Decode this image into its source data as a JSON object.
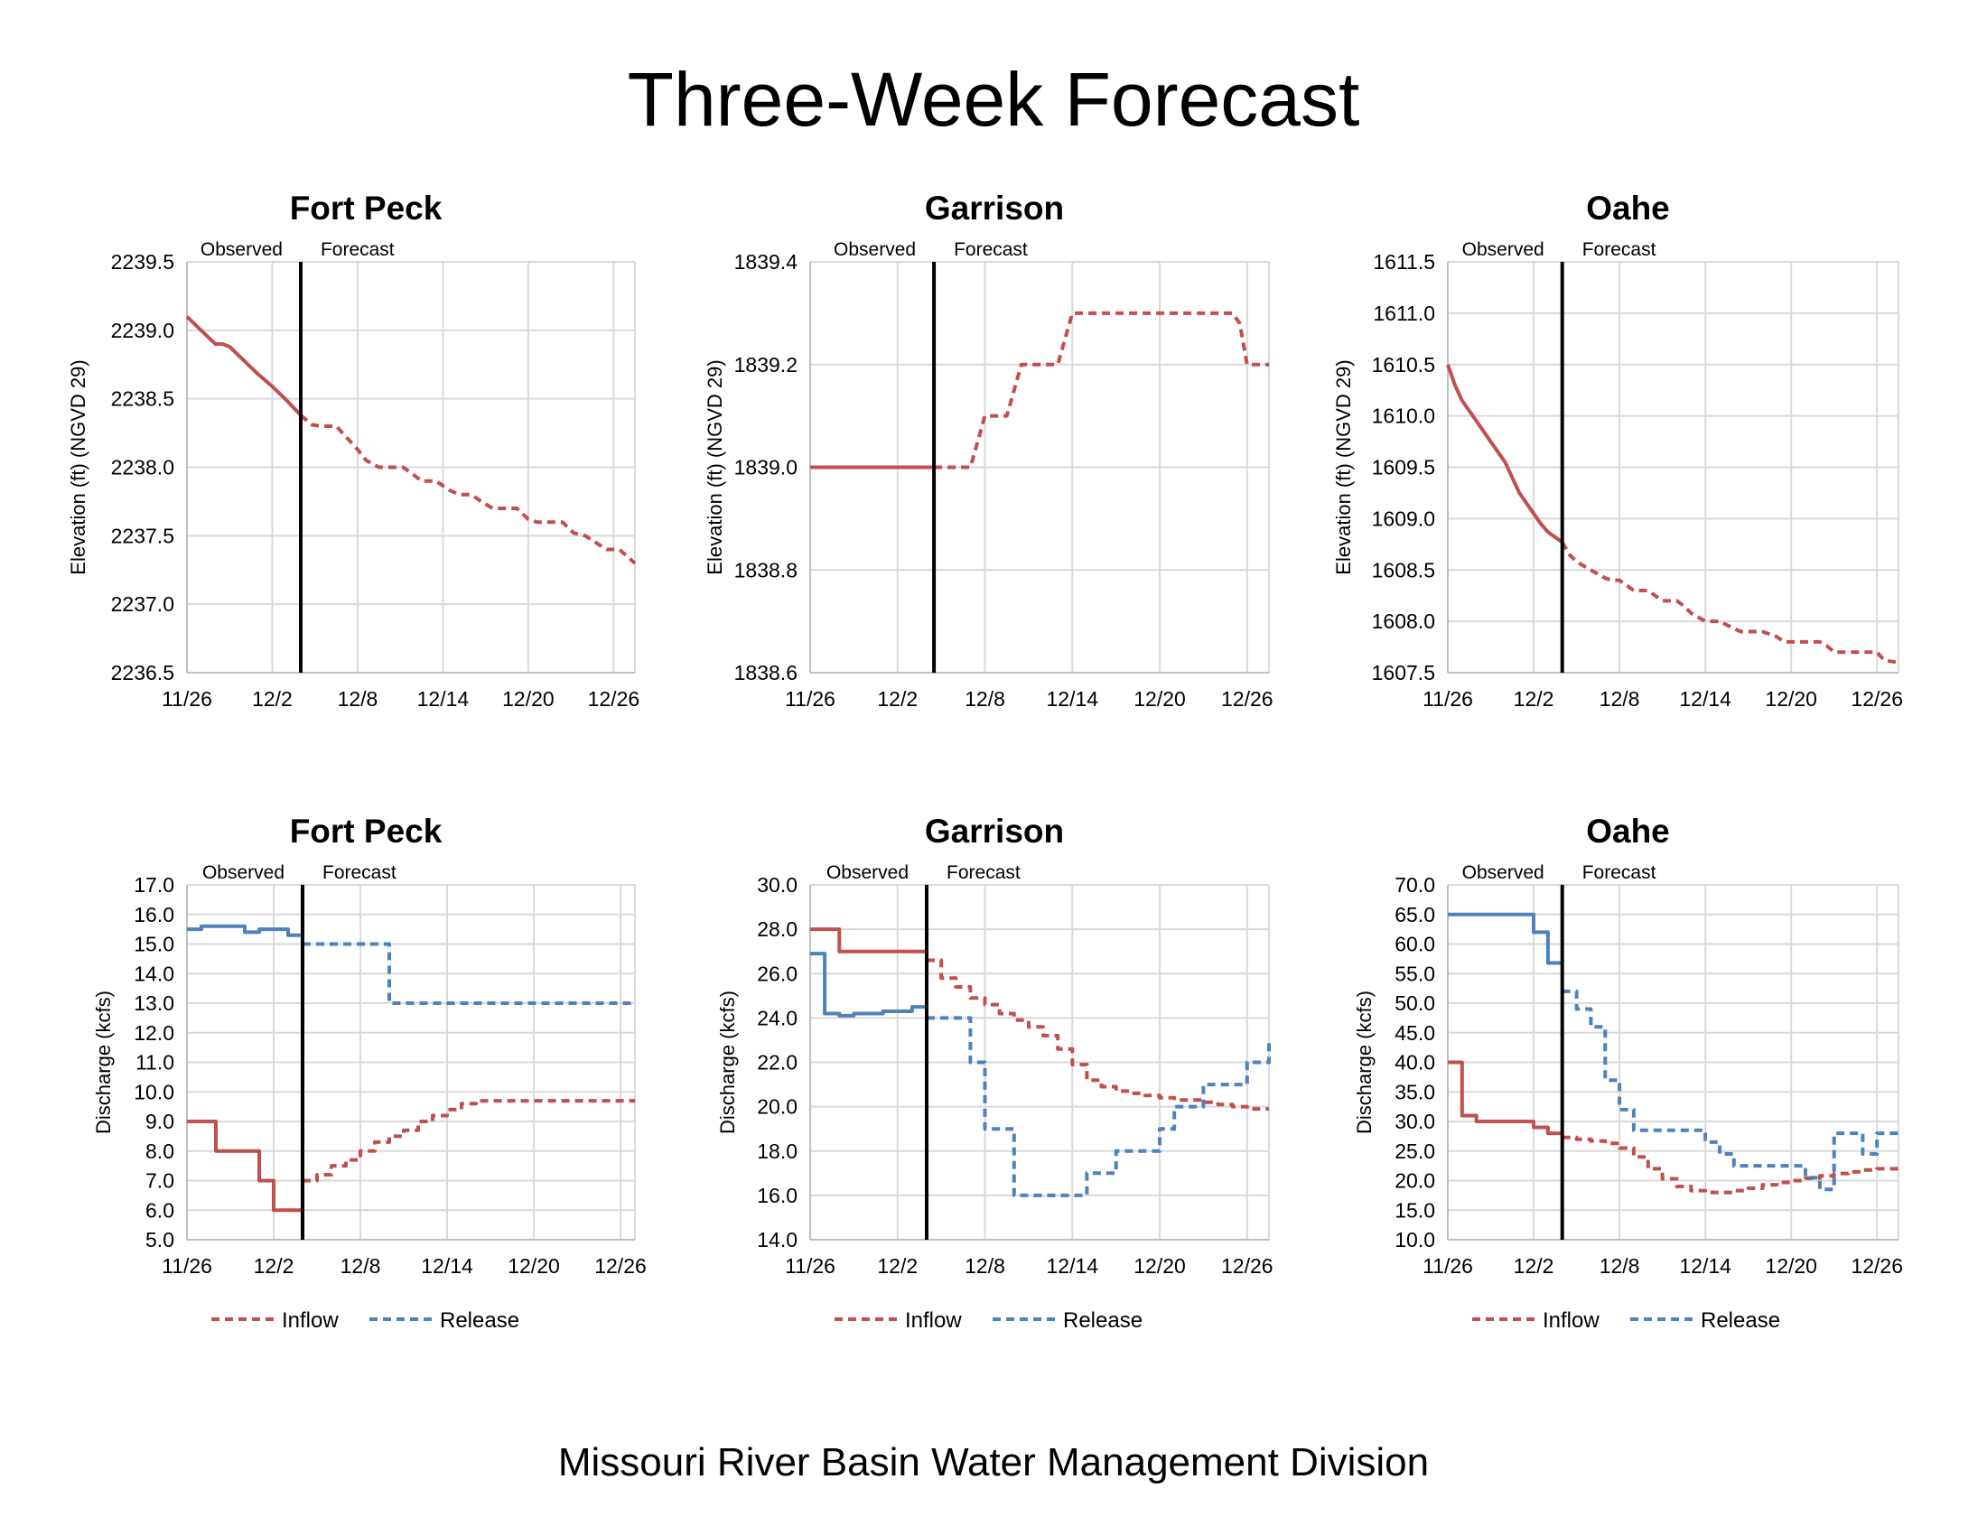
{
  "title": "Three-Week Forecast",
  "footer": "Missouri River Basin Water Management Division",
  "legend": {
    "inflow": "Inflow",
    "release": "Release"
  },
  "colors": {
    "inflow": "#c0504d",
    "release": "#4f81bd",
    "grid": "#d9d9d9",
    "divider": "#000000"
  },
  "chart_data": [
    {
      "type": "line",
      "title": "Fort Peck",
      "ylabel": "Elevation (ft) (NGVD 29)",
      "ylim": [
        2236.5,
        2239.5
      ],
      "yticks": [
        "2236.5",
        "2237.0",
        "2237.5",
        "2238.0",
        "2238.5",
        "2239.0",
        "2239.5"
      ],
      "xlim": [
        0,
        31.5
      ],
      "xticks": [
        0,
        6,
        12,
        18,
        24,
        30
      ],
      "xticklabels": [
        "11/26",
        "12/2",
        "12/8",
        "12/14",
        "12/20",
        "12/26"
      ],
      "observed_label": "Observed",
      "forecast_label": "Forecast",
      "divider_x": 8,
      "series": [
        {
          "name": "Observed",
          "color_key": "inflow",
          "dash": false,
          "step": false,
          "x": [
            0,
            1,
            1.5,
            2,
            2.5,
            3,
            4,
            5,
            6,
            7,
            8
          ],
          "y": [
            2239.1,
            2239.0,
            2238.95,
            2238.9,
            2238.9,
            2238.88,
            2238.78,
            2238.68,
            2238.59,
            2238.49,
            2238.38
          ]
        },
        {
          "name": "Forecast",
          "color_key": "inflow",
          "dash": true,
          "step": false,
          "x": [
            8,
            8.8,
            9.5,
            10.5,
            11.2,
            12,
            12.6,
            13.5,
            14.5,
            15.2,
            16,
            16.5,
            17.5,
            18.5,
            19.2,
            20,
            20.7,
            21.5,
            22.4,
            23.2,
            24,
            24.6,
            25.5,
            26.4,
            27.2,
            28,
            28.6,
            29.5,
            30.4,
            31.5
          ],
          "y": [
            2238.38,
            2238.31,
            2238.3,
            2238.3,
            2238.22,
            2238.13,
            2238.05,
            2238.0,
            2238.0,
            2238.0,
            2237.94,
            2237.9,
            2237.9,
            2237.83,
            2237.8,
            2237.8,
            2237.75,
            2237.7,
            2237.7,
            2237.7,
            2237.62,
            2237.6,
            2237.6,
            2237.6,
            2237.52,
            2237.5,
            2237.46,
            2237.4,
            2237.4,
            2237.3
          ]
        }
      ]
    },
    {
      "type": "line",
      "title": "Garrison",
      "ylabel": "Elevation (ft) (NGVD 29)",
      "ylim": [
        1838.6,
        1839.4
      ],
      "yticks": [
        "1838.6",
        "1838.8",
        "1839.0",
        "1839.2",
        "1839.4"
      ],
      "xlim": [
        0,
        31.5
      ],
      "xticks": [
        0,
        6,
        12,
        18,
        24,
        30
      ],
      "xticklabels": [
        "11/26",
        "12/2",
        "12/8",
        "12/14",
        "12/20",
        "12/26"
      ],
      "observed_label": "Observed",
      "forecast_label": "Forecast",
      "divider_x": 8.5,
      "series": [
        {
          "name": "Observed",
          "color_key": "inflow",
          "dash": false,
          "step": false,
          "x": [
            0,
            8.5
          ],
          "y": [
            1839.0,
            1839.0
          ]
        },
        {
          "name": "Forecast",
          "color_key": "inflow",
          "dash": true,
          "step": false,
          "x": [
            8.5,
            10,
            11,
            11.5,
            12,
            12.5,
            13.5,
            14,
            14.5,
            15,
            15.5,
            16,
            17,
            17.5,
            18,
            28,
            29,
            29.5,
            30,
            31,
            31.5
          ],
          "y": [
            1839.0,
            1839.0,
            1839.0,
            1839.05,
            1839.1,
            1839.1,
            1839.1,
            1839.15,
            1839.2,
            1839.2,
            1839.2,
            1839.2,
            1839.2,
            1839.25,
            1839.3,
            1839.3,
            1839.3,
            1839.28,
            1839.2,
            1839.2,
            1839.2
          ]
        }
      ]
    },
    {
      "type": "line",
      "title": "Oahe",
      "ylabel": "Elevation (ft) (NGVD 29)",
      "ylim": [
        1607.5,
        1611.5
      ],
      "yticks": [
        "1607.5",
        "1608.0",
        "1608.5",
        "1609.0",
        "1609.5",
        "1610.0",
        "1610.5",
        "1611.0",
        "1611.5"
      ],
      "xlim": [
        0,
        31.5
      ],
      "xticks": [
        0,
        6,
        12,
        18,
        24,
        30
      ],
      "xticklabels": [
        "11/26",
        "12/2",
        "12/8",
        "12/14",
        "12/20",
        "12/26"
      ],
      "observed_label": "Observed",
      "forecast_label": "Forecast",
      "divider_x": 8,
      "series": [
        {
          "name": "Observed",
          "color_key": "inflow",
          "dash": false,
          "step": false,
          "x": [
            0,
            0.5,
            1,
            2,
            3,
            4,
            5,
            6,
            6.5,
            7,
            7.5,
            8
          ],
          "y": [
            1610.5,
            1610.3,
            1610.15,
            1609.95,
            1609.75,
            1609.55,
            1609.25,
            1609.05,
            1608.95,
            1608.87,
            1608.82,
            1608.77
          ]
        },
        {
          "name": "Forecast",
          "color_key": "inflow",
          "dash": true,
          "step": false,
          "x": [
            8,
            8.5,
            9,
            10,
            11,
            11.5,
            12,
            12.5,
            13,
            14,
            14.5,
            15,
            16,
            16.5,
            17,
            18,
            18.5,
            19,
            20,
            20.5,
            21,
            22,
            23,
            23.5,
            24,
            25,
            26,
            26.5,
            27,
            28,
            29,
            30,
            30.5,
            31.5
          ],
          "y": [
            1608.77,
            1608.65,
            1608.58,
            1608.5,
            1608.42,
            1608.4,
            1608.4,
            1608.35,
            1608.3,
            1608.3,
            1608.25,
            1608.2,
            1608.2,
            1608.15,
            1608.08,
            1608.0,
            1608.0,
            1608.0,
            1607.93,
            1607.9,
            1607.9,
            1607.9,
            1607.85,
            1607.8,
            1607.8,
            1607.8,
            1607.8,
            1607.76,
            1607.7,
            1607.7,
            1607.7,
            1607.7,
            1607.62,
            1607.6
          ]
        }
      ]
    },
    {
      "type": "line",
      "title": "Fort Peck",
      "ylabel": "Discharge (kcfs)",
      "ylim": [
        5.0,
        17.0
      ],
      "yticks": [
        "5.0",
        "6.0",
        "7.0",
        "8.0",
        "9.0",
        "10.0",
        "11.0",
        "12.0",
        "13.0",
        "14.0",
        "15.0",
        "16.0",
        "17.0"
      ],
      "xlim": [
        0,
        31
      ],
      "xticks": [
        0,
        6,
        12,
        18,
        24,
        30
      ],
      "xticklabels": [
        "11/26",
        "12/2",
        "12/8",
        "12/14",
        "12/20",
        "12/26"
      ],
      "observed_label": "Observed",
      "forecast_label": "Forecast",
      "divider_x": 8,
      "series": [
        {
          "name": "Inflow observed",
          "color_key": "inflow",
          "dash": false,
          "step": true,
          "x": [
            0,
            2,
            5,
            6,
            8
          ],
          "y": [
            9.0,
            8.0,
            7.0,
            6.0,
            6.0
          ]
        },
        {
          "name": "Release observed",
          "color_key": "release",
          "dash": false,
          "step": true,
          "x": [
            0,
            1,
            4,
            5,
            7,
            8
          ],
          "y": [
            15.5,
            15.6,
            15.4,
            15.5,
            15.3,
            15.3
          ]
        },
        {
          "name": "Inflow",
          "color_key": "inflow",
          "dash": true,
          "step": true,
          "x": [
            8,
            9,
            10,
            11,
            12,
            13,
            14,
            15,
            16,
            17,
            18,
            19,
            20,
            31
          ],
          "y": [
            7.0,
            7.2,
            7.5,
            7.7,
            8.0,
            8.3,
            8.5,
            8.7,
            9.0,
            9.2,
            9.4,
            9.6,
            9.7,
            9.7
          ]
        },
        {
          "name": "Release",
          "color_key": "release",
          "dash": true,
          "step": true,
          "x": [
            8,
            14,
            31
          ],
          "y": [
            15.0,
            13.0,
            13.0
          ]
        }
      ]
    },
    {
      "type": "line",
      "title": "Garrison",
      "ylabel": "Discharge (kcfs)",
      "ylim": [
        14.0,
        30.0
      ],
      "yticks": [
        "14.0",
        "16.0",
        "18.0",
        "20.0",
        "22.0",
        "24.0",
        "26.0",
        "28.0",
        "30.0"
      ],
      "xlim": [
        0,
        31.5
      ],
      "xticks": [
        0,
        6,
        12,
        18,
        24,
        30
      ],
      "xticklabels": [
        "11/26",
        "12/2",
        "12/8",
        "12/14",
        "12/20",
        "12/26"
      ],
      "observed_label": "Observed",
      "forecast_label": "Forecast",
      "divider_x": 8,
      "series": [
        {
          "name": "Inflow observed",
          "color_key": "inflow",
          "dash": false,
          "step": true,
          "x": [
            0,
            2,
            8
          ],
          "y": [
            28.0,
            27.0,
            27.0
          ]
        },
        {
          "name": "Release observed",
          "color_key": "release",
          "dash": false,
          "step": true,
          "x": [
            0,
            1,
            2,
            3,
            5,
            7,
            8
          ],
          "y": [
            26.9,
            24.2,
            24.1,
            24.2,
            24.3,
            24.5,
            24.5
          ]
        },
        {
          "name": "Inflow",
          "color_key": "inflow",
          "dash": true,
          "step": true,
          "x": [
            8,
            9,
            10,
            11,
            12,
            13,
            14,
            15,
            16,
            17,
            18,
            19,
            20,
            21,
            22,
            23,
            24,
            25,
            26,
            27,
            28,
            29,
            30,
            31.5
          ],
          "y": [
            26.6,
            25.8,
            25.4,
            24.9,
            24.6,
            24.2,
            23.9,
            23.6,
            23.2,
            22.6,
            21.9,
            21.2,
            20.9,
            20.7,
            20.6,
            20.5,
            20.4,
            20.3,
            20.3,
            20.2,
            20.1,
            20.0,
            19.9,
            19.9
          ]
        },
        {
          "name": "Release",
          "color_key": "release",
          "dash": true,
          "step": true,
          "x": [
            8,
            11,
            12,
            14,
            16,
            18,
            19,
            21,
            22,
            24,
            25,
            27,
            28,
            30,
            31.5,
            31.5
          ],
          "y": [
            24.0,
            22.0,
            19.0,
            16.0,
            16.0,
            16.0,
            17.0,
            18.0,
            18.0,
            19.0,
            20.0,
            21.0,
            21.0,
            22.0,
            23.0,
            23.0
          ]
        }
      ]
    },
    {
      "type": "line",
      "title": "Oahe",
      "ylabel": "Discharge (kcfs)",
      "ylim": [
        10.0,
        70.0
      ],
      "yticks": [
        "10.0",
        "15.0",
        "20.0",
        "25.0",
        "30.0",
        "35.0",
        "40.0",
        "45.0",
        "50.0",
        "55.0",
        "60.0",
        "65.0",
        "70.0"
      ],
      "xlim": [
        0,
        31.5
      ],
      "xticks": [
        0,
        6,
        12,
        18,
        24,
        30
      ],
      "xticklabels": [
        "11/26",
        "12/2",
        "12/8",
        "12/14",
        "12/20",
        "12/26"
      ],
      "observed_label": "Observed",
      "forecast_label": "Forecast",
      "divider_x": 8,
      "series": [
        {
          "name": "Inflow observed",
          "color_key": "inflow",
          "dash": false,
          "step": true,
          "x": [
            0,
            1,
            2,
            3,
            4,
            6,
            7,
            8
          ],
          "y": [
            40.0,
            31.0,
            30.0,
            30.0,
            30.0,
            29.0,
            28.0,
            28.0
          ]
        },
        {
          "name": "Release observed",
          "color_key": "release",
          "dash": false,
          "step": true,
          "x": [
            0,
            2,
            4,
            6,
            7,
            8
          ],
          "y": [
            65.0,
            65.0,
            65.0,
            62.0,
            56.8,
            56.8
          ]
        },
        {
          "name": "Inflow",
          "color_key": "inflow",
          "dash": true,
          "step": true,
          "x": [
            8,
            9,
            10,
            11,
            12,
            13,
            14,
            15,
            16,
            17,
            18,
            19,
            20,
            21,
            22,
            23,
            24,
            25,
            26,
            27,
            28,
            29,
            30,
            31.5
          ],
          "y": [
            27.3,
            27.0,
            26.7,
            26.3,
            25.5,
            24.0,
            22.0,
            20.3,
            19.0,
            18.3,
            18.0,
            18.0,
            18.3,
            18.7,
            19.3,
            19.7,
            20.0,
            20.4,
            20.8,
            21.2,
            21.5,
            21.8,
            22.0,
            22.0
          ]
        },
        {
          "name": "Release",
          "color_key": "release",
          "dash": true,
          "step": true,
          "x": [
            8,
            9,
            10,
            11,
            12,
            13,
            14,
            18,
            19,
            20,
            21,
            25,
            26,
            27,
            28,
            29,
            30,
            31.5
          ],
          "y": [
            52.0,
            49.0,
            46.0,
            37.0,
            32.0,
            28.5,
            28.5,
            26.5,
            24.5,
            22.5,
            22.5,
            20.5,
            18.5,
            28.0,
            28.0,
            24.5,
            28.0,
            28.0
          ]
        }
      ]
    }
  ]
}
